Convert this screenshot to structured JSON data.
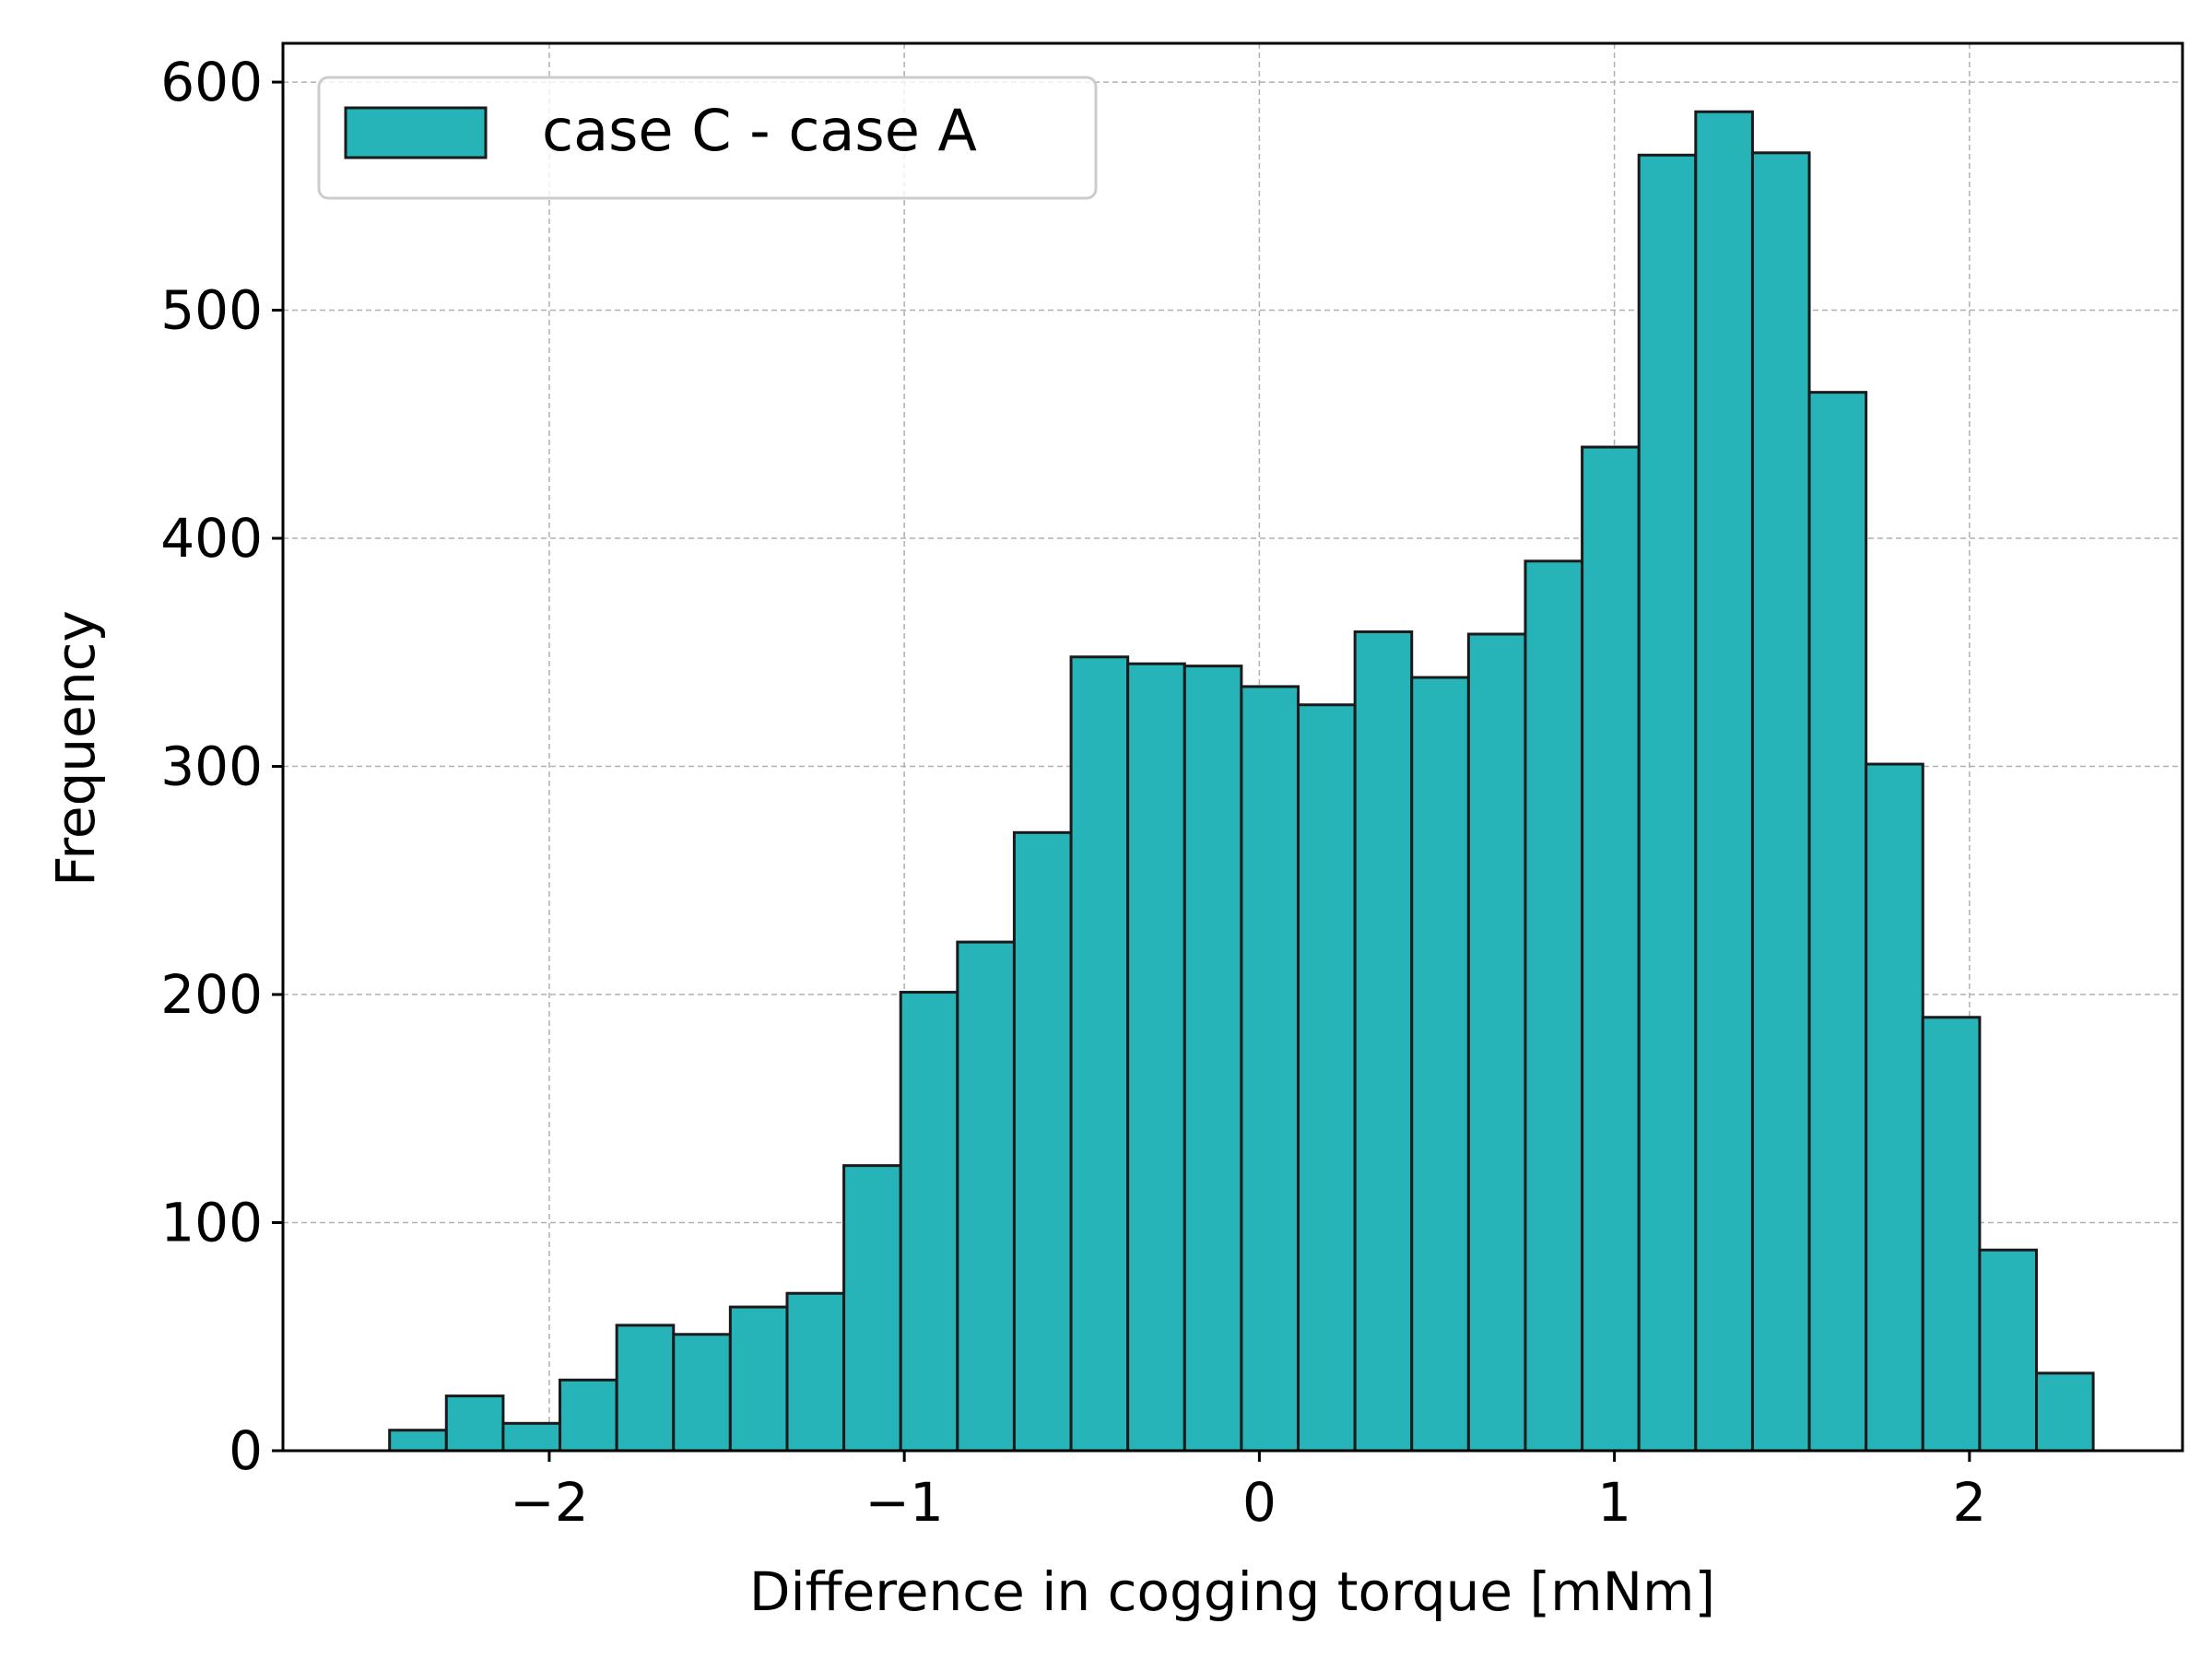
{
  "chart_data": {
    "type": "bar",
    "subtype": "histogram",
    "title": "",
    "xlabel": "Difference in cogging torque [mNm]",
    "ylabel": "Frequency",
    "xlim": [
      -2.75,
      2.6
    ],
    "ylim": [
      0,
      617
    ],
    "x_ticks": [
      -2,
      -1,
      0,
      1,
      2
    ],
    "x_tick_labels": [
      "−2",
      "−1",
      "0",
      "1",
      "2"
    ],
    "y_ticks": [
      0,
      100,
      200,
      300,
      400,
      500,
      600
    ],
    "y_tick_labels": [
      "0",
      "100",
      "200",
      "300",
      "400",
      "500",
      "600"
    ],
    "grid": true,
    "legend_position": "top-left",
    "bin_edges": [
      -2.4497,
      -2.2898,
      -2.1298,
      -1.9699,
      -1.8099,
      -1.65,
      -1.4901,
      -1.3301,
      -1.1702,
      -1.0102,
      -0.8503,
      -0.6904,
      -0.5304,
      -0.3705,
      -0.2105,
      -0.0506,
      0.1094,
      0.2693,
      0.4292,
      0.5892,
      0.7491,
      0.9091,
      1.069,
      1.2289,
      1.3889,
      1.5488,
      1.7088,
      1.8687,
      2.0287,
      2.1886,
      2.3485
    ],
    "series": [
      {
        "name": "case C - case A",
        "color": "#26b4b9",
        "edgecolor": "#1a1a1a",
        "values": [
          9,
          24,
          12,
          31,
          55,
          51,
          63,
          69,
          125,
          201,
          223,
          271,
          348,
          345,
          344,
          335,
          327,
          359,
          339,
          358,
          390,
          440,
          568,
          587,
          569,
          464,
          301,
          190,
          88,
          34
        ]
      }
    ]
  }
}
